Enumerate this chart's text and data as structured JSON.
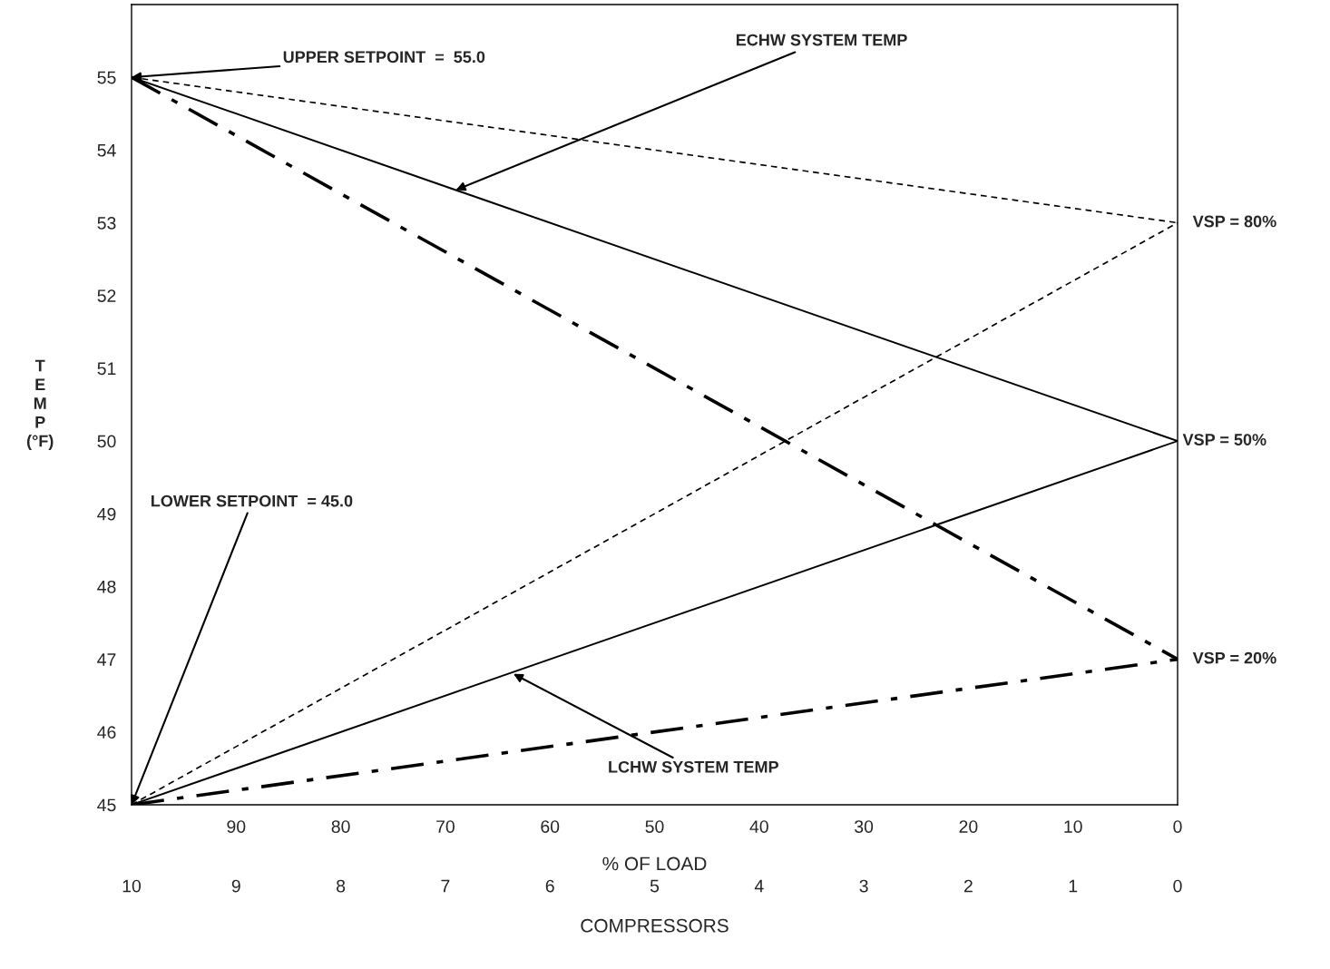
{
  "chart_data": {
    "type": "line",
    "xlabel": "% OF LOAD",
    "ylabel": "T\nE\nM\nP\n(°F)",
    "x2label": "COMPRESSORS",
    "xlim": [
      100,
      0
    ],
    "xticks": [
      90,
      80,
      70,
      60,
      50,
      40,
      30,
      20,
      10,
      0
    ],
    "ylim": [
      45,
      56
    ],
    "yticks": [
      45,
      46,
      47,
      48,
      49,
      50,
      51,
      52,
      53,
      54,
      55
    ],
    "x2lim": [
      10,
      0
    ],
    "x2ticks": [
      10,
      9,
      8,
      7,
      6,
      5,
      4,
      3,
      2,
      1,
      0
    ],
    "grid": false,
    "x": [
      100,
      0
    ],
    "series": [
      {
        "color": "#000000",
        "line_style": "solid",
        "values": [
          55,
          50
        ]
      },
      {
        "color": "#000000",
        "line_style": "solid",
        "values": [
          45,
          50
        ]
      },
      {
        "color": "#000000",
        "line_style": "dashed",
        "values": [
          55,
          53
        ]
      },
      {
        "color": "#000000",
        "line_style": "dashed",
        "values": [
          45,
          53
        ]
      },
      {
        "color": "#000000",
        "line_style": "dashdot",
        "values": [
          55,
          47
        ]
      },
      {
        "color": "#000000",
        "line_style": "dashdot",
        "values": [
          45,
          47
        ]
      }
    ],
    "annotations": [
      {
        "text": "UPPER SETPOINT  =  55.0",
        "x": 100,
        "y": 55
      },
      {
        "text": "LOWER SETPOINT  = 45.0",
        "x": 100,
        "y": 45
      },
      {
        "text": "ECHW SYSTEM TEMP",
        "x": 69,
        "y": 53.45
      },
      {
        "text": "LCHW SYSTEM TEMP",
        "x": 63.5,
        "y": 46.8
      },
      {
        "text": "VSP = 80%",
        "x": 0,
        "y": 53
      },
      {
        "text": "VSP = 50%",
        "x": 0,
        "y": 50
      },
      {
        "text": "VSP = 20%",
        "x": 0,
        "y": 47
      }
    ]
  }
}
